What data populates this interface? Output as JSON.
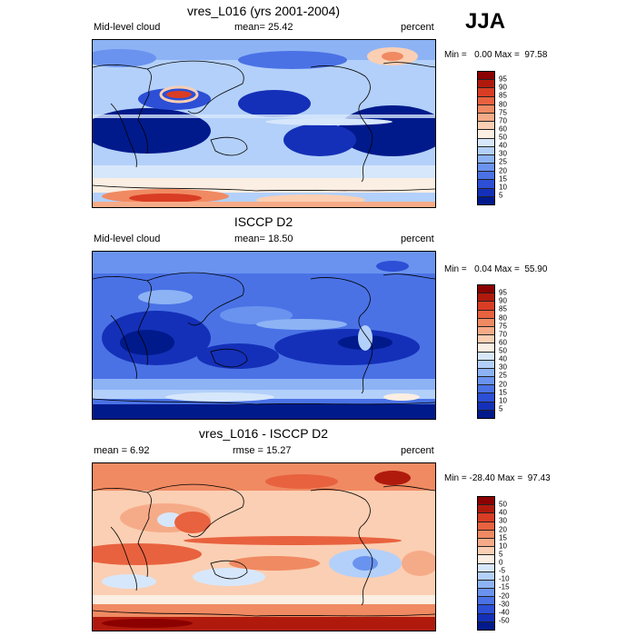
{
  "season": "JJA",
  "panels": [
    {
      "id": "model",
      "title": "vres_L016 (yrs 2001-2004)",
      "left_label": "Mid-level cloud",
      "center_label": "mean=  25.42",
      "right_label": "percent",
      "minmax": "Min =   0.00 Max =  97.58",
      "colorbar": {
        "labels": [
          "95",
          "90",
          "85",
          "80",
          "75",
          "70",
          "60",
          "50",
          "40",
          "30",
          "25",
          "20",
          "15",
          "10",
          "5"
        ],
        "colors": [
          "#8b0000",
          "#b01a0d",
          "#d93d24",
          "#e8623f",
          "#f08a62",
          "#f6ab88",
          "#fbcfb3",
          "#fbeee2",
          "#d7e7fb",
          "#b3d0fa",
          "#8db3f5",
          "#6a93ef",
          "#4a72e5",
          "#2c4fd6",
          "#1430b8",
          "#001a8c"
        ]
      }
    },
    {
      "id": "obs",
      "title": "ISCCP D2",
      "left_label": "Mid-level cloud",
      "center_label": "mean=  18.50",
      "right_label": "percent",
      "minmax": "Min =   0.04 Max =  55.90",
      "colorbar": {
        "labels": [
          "95",
          "90",
          "85",
          "80",
          "75",
          "70",
          "60",
          "50",
          "40",
          "30",
          "25",
          "20",
          "15",
          "10",
          "5"
        ],
        "colors": [
          "#8b0000",
          "#b01a0d",
          "#d93d24",
          "#e8623f",
          "#f08a62",
          "#f6ab88",
          "#fbcfb3",
          "#fbeee2",
          "#d7e7fb",
          "#b3d0fa",
          "#8db3f5",
          "#6a93ef",
          "#4a72e5",
          "#2c4fd6",
          "#1430b8",
          "#001a8c"
        ]
      }
    },
    {
      "id": "diff",
      "title": "vres_L016 - ISCCP D2",
      "left_label": "mean =   6.92",
      "center_label": "rmse =  15.27",
      "right_label": "percent",
      "minmax": "Min = -28.40 Max =  97.43",
      "colorbar": {
        "labels": [
          "50",
          "40",
          "30",
          "20",
          "15",
          "10",
          "5",
          "0",
          "-5",
          "-10",
          "-15",
          "-20",
          "-30",
          "-40",
          "-50"
        ],
        "colors": [
          "#8b0000",
          "#b01a0d",
          "#d93d24",
          "#e8623f",
          "#f08a62",
          "#f6ab88",
          "#fbcfb3",
          "#fbeee2",
          "#d7e7fb",
          "#b3d0fa",
          "#8db3f5",
          "#6a93ef",
          "#4a72e5",
          "#2c4fd6",
          "#1430b8",
          "#001a8c"
        ]
      }
    }
  ]
}
